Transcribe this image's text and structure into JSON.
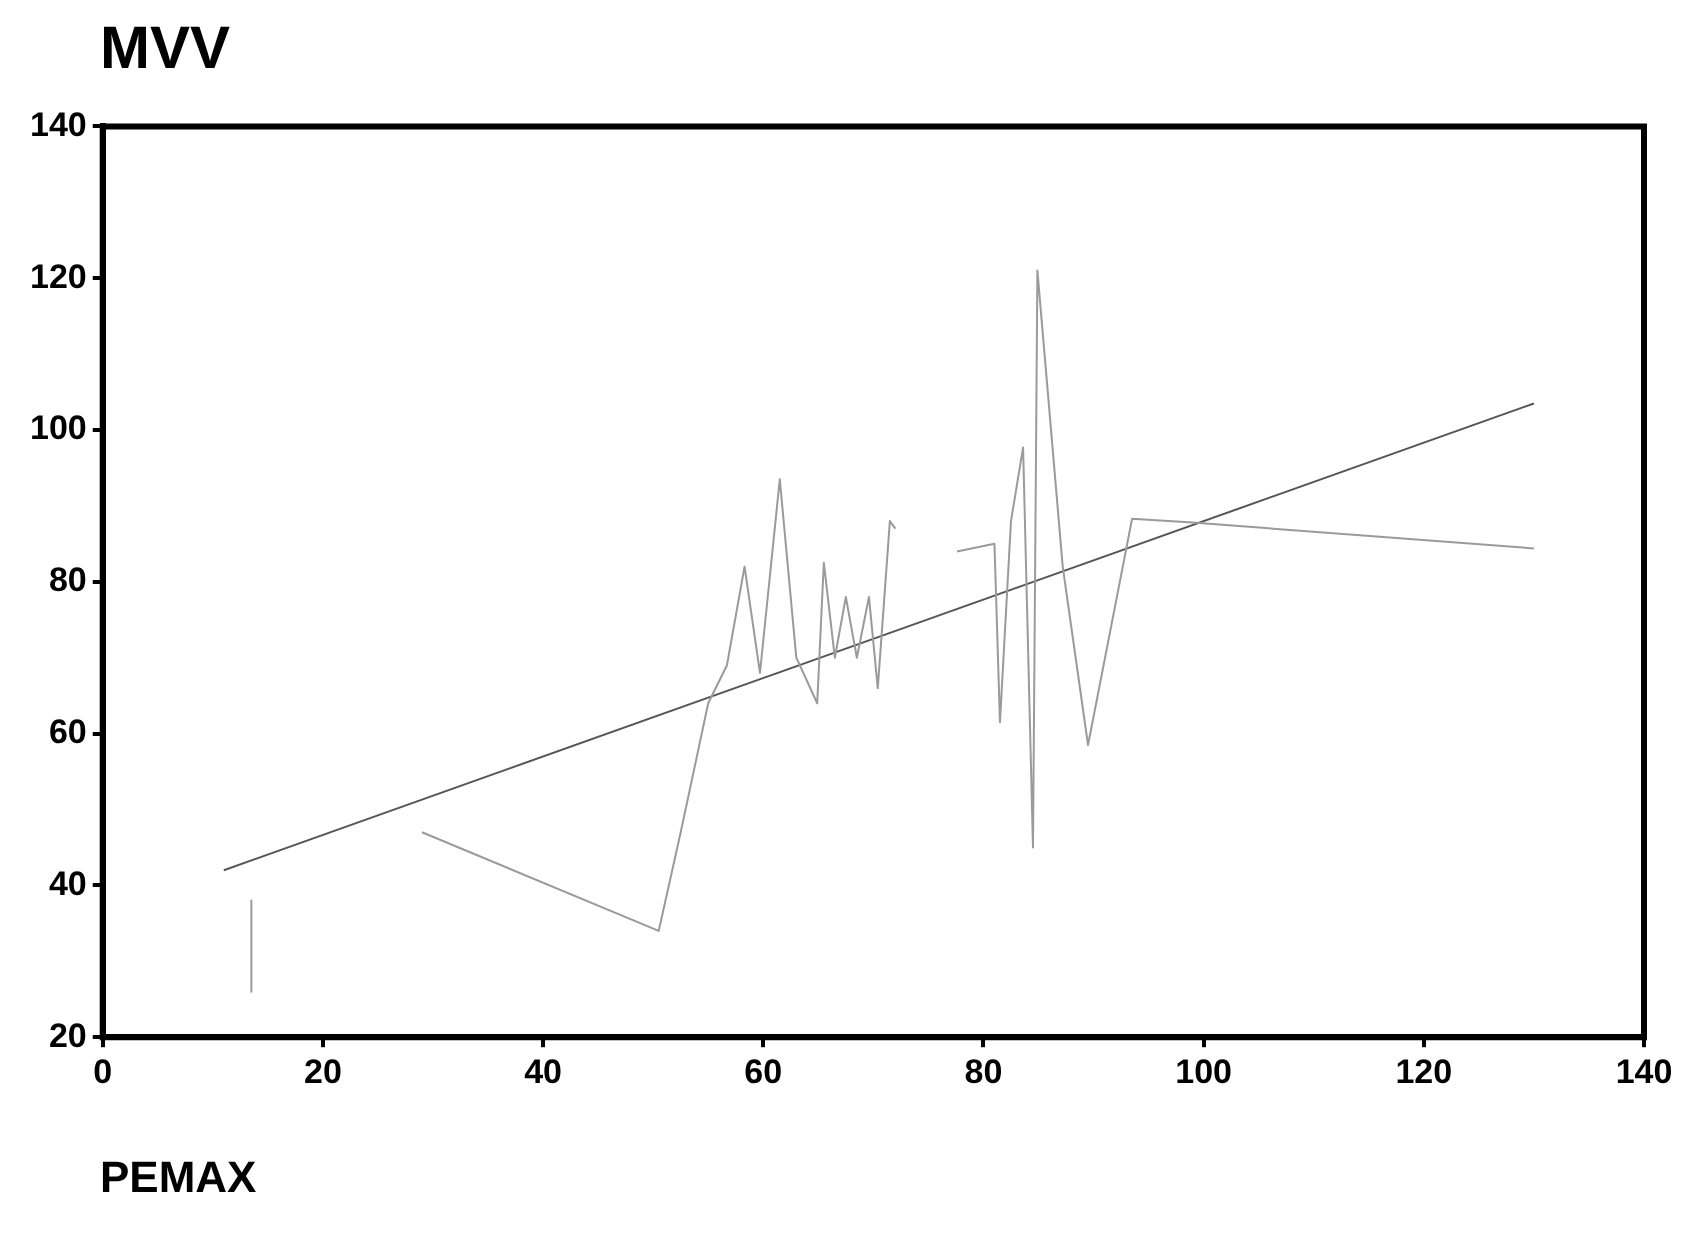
{
  "chart_data": {
    "type": "line",
    "ylabel": "MVV",
    "xlabel": "PEMAX",
    "xlim": [
      0,
      140
    ],
    "xticks": [
      0,
      20,
      40,
      60,
      80,
      100,
      120,
      140
    ],
    "ylim": [
      20,
      140
    ],
    "yticks": [
      20,
      40,
      60,
      80,
      100,
      120,
      140
    ],
    "grid": false,
    "legend": false,
    "marker": "none",
    "series": [
      {
        "color": "#9a9a9a",
        "x": [
          13.5,
          13.5,
          20,
          29,
          50.5,
          52.5,
          55,
          56.7,
          58.3,
          59.7,
          61.5,
          63,
          64.9,
          65.5,
          66.5,
          67.5,
          68.5,
          69.6,
          70.4,
          71.5,
          72,
          75,
          77.6,
          81,
          81.5,
          82.5,
          83.6,
          84.5,
          84.9,
          87.2,
          89.5,
          92.2,
          93.5,
          99,
          130
        ],
        "values": [
          38,
          26,
          null,
          47,
          34,
          47,
          64,
          69,
          82,
          68,
          93.5,
          70,
          64,
          82.5,
          70,
          78,
          70,
          78,
          66,
          88,
          87,
          null,
          84,
          85,
          61.5,
          88,
          97.7,
          45,
          121,
          82,
          58.5,
          78.6,
          88.3,
          87.8,
          84.4
        ]
      },
      {
        "type": "line",
        "color": "#555555",
        "x": [
          11,
          130
        ],
        "values": [
          42,
          103.5
        ]
      }
    ]
  }
}
